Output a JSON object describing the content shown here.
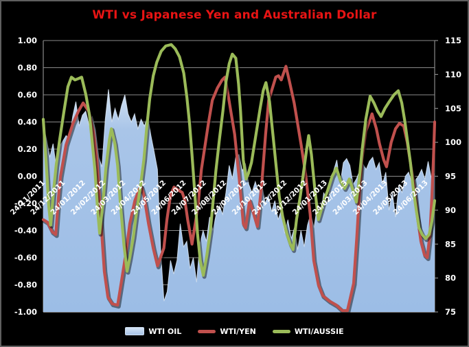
{
  "title": "WTI vs Japanese Yen and Australian Dollar",
  "colors": {
    "title": "#e81414",
    "background": "#000000",
    "grid": "#8a8a8a",
    "axis_text": "#ffffff"
  },
  "chart_data": {
    "type": "area+line combo (rolling correlation vs price)",
    "title": "WTI vs Japanese Yen and Australian Dollar",
    "grid": "horizontal gridlines on, black plot background",
    "legend_position": "bottom center",
    "y_left": {
      "min": -1.0,
      "max": 1.0,
      "step": 0.2,
      "ticks": [
        "1.00",
        "0.80",
        "0.60",
        "0.40",
        "0.20",
        "0.00",
        "-0.20",
        "-0.40",
        "-0.60",
        "-0.80",
        "-1.00"
      ]
    },
    "y_right": {
      "min": 75,
      "max": 115,
      "step": 5,
      "ticks": [
        "115",
        "110",
        "105",
        "100",
        "95",
        "90",
        "85",
        "80",
        "75"
      ]
    },
    "x_labels": [
      "24/11/2011",
      "24/12/2011",
      "24/01/2012",
      "24/02/2012",
      "24/03/2012",
      "24/04/2012",
      "24/05/2012",
      "24/06/2012",
      "24/07/2012",
      "24/08/2012",
      "24/09/2012",
      "24/10/2012",
      "24/11/2012",
      "24/12/2012",
      "24/01/2013",
      "24/02/2013",
      "24/03/2013",
      "24/04/2013",
      "24/05/2013",
      "24/06/2013"
    ],
    "series": [
      {
        "name": "WTI OIL",
        "type": "area",
        "color": "#a9c5e8",
        "color_light": "#d3e2f4",
        "axis": "left",
        "values": [
          0.38,
          0.27,
          0.14,
          0.24,
          0.06,
          0.22,
          0.26,
          0.3,
          0.27,
          0.44,
          0.55,
          0.37,
          0.45,
          0.48,
          0.38,
          0.44,
          0.34,
          0.14,
          0.07,
          0.42,
          0.64,
          0.4,
          0.5,
          0.42,
          0.52,
          0.6,
          0.46,
          0.4,
          0.46,
          0.35,
          0.42,
          0.37,
          0.44,
          0.3,
          0.18,
          0.05,
          -0.55,
          -0.92,
          -0.85,
          -0.62,
          -0.72,
          -0.62,
          -0.35,
          -0.52,
          -0.48,
          -0.68,
          -0.6,
          -0.78,
          -0.5,
          -0.4,
          -0.48,
          -0.3,
          -0.4,
          -0.28,
          -0.22,
          -0.28,
          -0.12,
          0.08,
          -0.02,
          0.14,
          0.16,
          0.04,
          0.09,
          -0.06,
          -0.12,
          -0.04,
          -0.12,
          -0.06,
          -0.2,
          -0.14,
          -0.26,
          -0.18,
          -0.32,
          -0.25,
          -0.42,
          -0.32,
          -0.46,
          -0.38,
          -0.54,
          -0.4,
          -0.52,
          -0.36,
          -0.28,
          -0.38,
          -0.22,
          -0.3,
          -0.12,
          -0.2,
          -0.08,
          0.04,
          0.12,
          -0.06,
          0.1,
          0.13,
          0.08,
          -0.06,
          -0.02,
          0.04,
          0.09,
          0.05,
          0.11,
          0.14,
          0.05,
          0.1,
          -0.06,
          0.03,
          -0.25,
          -0.12,
          -0.3,
          -0.07,
          -0.12,
          0.0,
          0.03,
          -0.05,
          -0.03,
          0.0,
          0.05,
          -0.02,
          0.11,
          -0.02,
          0.02
        ]
      },
      {
        "name": "WTI/YEN",
        "type": "line",
        "color": "#c0504d",
        "axis": "left",
        "points": [
          [
            0.0,
            -0.32
          ],
          [
            0.011,
            -0.34
          ],
          [
            0.023,
            -0.41
          ],
          [
            0.032,
            -0.43
          ],
          [
            0.039,
            -0.15
          ],
          [
            0.044,
            0.0
          ],
          [
            0.058,
            0.23
          ],
          [
            0.076,
            0.39
          ],
          [
            0.09,
            0.48
          ],
          [
            0.102,
            0.54
          ],
          [
            0.116,
            0.48
          ],
          [
            0.128,
            0.33
          ],
          [
            0.137,
            0.12
          ],
          [
            0.142,
            -0.1
          ],
          [
            0.149,
            -0.4
          ],
          [
            0.156,
            -0.7
          ],
          [
            0.165,
            -0.89
          ],
          [
            0.176,
            -0.94
          ],
          [
            0.19,
            -0.95
          ],
          [
            0.199,
            -0.79
          ],
          [
            0.211,
            -0.57
          ],
          [
            0.221,
            -0.35
          ],
          [
            0.234,
            -0.18
          ],
          [
            0.246,
            -0.09
          ],
          [
            0.251,
            -0.08
          ],
          [
            0.257,
            -0.14
          ],
          [
            0.269,
            -0.35
          ],
          [
            0.281,
            -0.53
          ],
          [
            0.292,
            -0.66
          ],
          [
            0.308,
            -0.53
          ],
          [
            0.316,
            -0.32
          ],
          [
            0.325,
            -0.14
          ],
          [
            0.334,
            -0.08
          ],
          [
            0.344,
            -0.1
          ],
          [
            0.355,
            -0.12
          ],
          [
            0.362,
            -0.18
          ],
          [
            0.369,
            -0.32
          ],
          [
            0.38,
            -0.5
          ],
          [
            0.395,
            -0.23
          ],
          [
            0.404,
            0.05
          ],
          [
            0.413,
            0.22
          ],
          [
            0.422,
            0.39
          ],
          [
            0.432,
            0.56
          ],
          [
            0.445,
            0.65
          ],
          [
            0.457,
            0.71
          ],
          [
            0.464,
            0.73
          ],
          [
            0.471,
            0.62
          ],
          [
            0.489,
            0.31
          ],
          [
            0.501,
            -0.03
          ],
          [
            0.511,
            -0.35
          ],
          [
            0.517,
            -0.38
          ],
          [
            0.527,
            -0.18
          ],
          [
            0.536,
            -0.26
          ],
          [
            0.547,
            -0.37
          ],
          [
            0.559,
            -0.03
          ],
          [
            0.568,
            0.31
          ],
          [
            0.576,
            0.56
          ],
          [
            0.594,
            0.73
          ],
          [
            0.601,
            0.74
          ],
          [
            0.608,
            0.71
          ],
          [
            0.62,
            0.81
          ],
          [
            0.629,
            0.7
          ],
          [
            0.641,
            0.54
          ],
          [
            0.659,
            0.23
          ],
          [
            0.67,
            0.02
          ],
          [
            0.682,
            -0.28
          ],
          [
            0.691,
            -0.62
          ],
          [
            0.703,
            -0.8
          ],
          [
            0.714,
            -0.88
          ],
          [
            0.731,
            -0.92
          ],
          [
            0.749,
            -0.95
          ],
          [
            0.764,
            -0.99
          ],
          [
            0.777,
            -0.99
          ],
          [
            0.793,
            -0.79
          ],
          [
            0.801,
            -0.45
          ],
          [
            0.808,
            -0.11
          ],
          [
            0.814,
            0.12
          ],
          [
            0.824,
            0.33
          ],
          [
            0.84,
            0.46
          ],
          [
            0.851,
            0.35
          ],
          [
            0.859,
            0.24
          ],
          [
            0.87,
            0.12
          ],
          [
            0.877,
            0.07
          ],
          [
            0.889,
            0.25
          ],
          [
            0.9,
            0.35
          ],
          [
            0.91,
            0.39
          ],
          [
            0.921,
            0.37
          ],
          [
            0.93,
            0.25
          ],
          [
            0.938,
            0.1
          ],
          [
            0.947,
            -0.06
          ],
          [
            0.956,
            -0.3
          ],
          [
            0.965,
            -0.48
          ],
          [
            0.974,
            -0.58
          ],
          [
            0.981,
            -0.6
          ],
          [
            0.988,
            -0.42
          ],
          [
            0.993,
            -0.14
          ],
          [
            0.997,
            0.14
          ],
          [
            1.0,
            0.4
          ]
        ]
      },
      {
        "name": "WTI/AUSSIE",
        "type": "line",
        "color": "#9bbb59",
        "axis": "left",
        "points": [
          [
            0.0,
            0.42
          ],
          [
            0.007,
            0.12
          ],
          [
            0.014,
            -0.22
          ],
          [
            0.019,
            -0.36
          ],
          [
            0.026,
            -0.12
          ],
          [
            0.033,
            0.08
          ],
          [
            0.042,
            0.27
          ],
          [
            0.053,
            0.48
          ],
          [
            0.063,
            0.66
          ],
          [
            0.072,
            0.73
          ],
          [
            0.081,
            0.71
          ],
          [
            0.09,
            0.72
          ],
          [
            0.098,
            0.73
          ],
          [
            0.109,
            0.6
          ],
          [
            0.118,
            0.45
          ],
          [
            0.125,
            0.25
          ],
          [
            0.132,
            0.05
          ],
          [
            0.139,
            -0.25
          ],
          [
            0.144,
            -0.42
          ],
          [
            0.153,
            -0.18
          ],
          [
            0.16,
            0.06
          ],
          [
            0.169,
            0.27
          ],
          [
            0.174,
            0.35
          ],
          [
            0.183,
            0.24
          ],
          [
            0.19,
            0.08
          ],
          [
            0.197,
            -0.2
          ],
          [
            0.206,
            -0.5
          ],
          [
            0.214,
            -0.7
          ],
          [
            0.221,
            -0.6
          ],
          [
            0.23,
            -0.45
          ],
          [
            0.239,
            -0.25
          ],
          [
            0.248,
            -0.08
          ],
          [
            0.257,
            0.12
          ],
          [
            0.264,
            0.35
          ],
          [
            0.272,
            0.57
          ],
          [
            0.281,
            0.74
          ],
          [
            0.29,
            0.84
          ],
          [
            0.301,
            0.92
          ],
          [
            0.313,
            0.96
          ],
          [
            0.327,
            0.97
          ],
          [
            0.337,
            0.94
          ],
          [
            0.348,
            0.88
          ],
          [
            0.359,
            0.76
          ],
          [
            0.367,
            0.58
          ],
          [
            0.374,
            0.38
          ],
          [
            0.38,
            0.16
          ],
          [
            0.387,
            -0.12
          ],
          [
            0.394,
            -0.42
          ],
          [
            0.401,
            -0.62
          ],
          [
            0.409,
            -0.73
          ],
          [
            0.418,
            -0.58
          ],
          [
            0.427,
            -0.4
          ],
          [
            0.434,
            -0.18
          ],
          [
            0.441,
            0.04
          ],
          [
            0.45,
            0.27
          ],
          [
            0.459,
            0.48
          ],
          [
            0.467,
            0.7
          ],
          [
            0.475,
            0.83
          ],
          [
            0.483,
            0.9
          ],
          [
            0.492,
            0.87
          ],
          [
            0.499,
            0.68
          ],
          [
            0.504,
            0.48
          ],
          [
            0.511,
            0.12
          ],
          [
            0.518,
            -0.02
          ],
          [
            0.524,
            0.02
          ],
          [
            0.532,
            0.1
          ],
          [
            0.543,
            0.3
          ],
          [
            0.554,
            0.5
          ],
          [
            0.562,
            0.63
          ],
          [
            0.569,
            0.69
          ],
          [
            0.578,
            0.55
          ],
          [
            0.587,
            0.3
          ],
          [
            0.594,
            0.1
          ],
          [
            0.603,
            -0.15
          ],
          [
            0.612,
            -0.3
          ],
          [
            0.622,
            -0.42
          ],
          [
            0.631,
            -0.5
          ],
          [
            0.638,
            -0.54
          ],
          [
            0.647,
            -0.32
          ],
          [
            0.657,
            -0.14
          ],
          [
            0.666,
            0.05
          ],
          [
            0.673,
            0.2
          ],
          [
            0.678,
            0.3
          ],
          [
            0.685,
            0.16
          ],
          [
            0.694,
            -0.1
          ],
          [
            0.703,
            -0.32
          ],
          [
            0.715,
            -0.2
          ],
          [
            0.726,
            -0.11
          ],
          [
            0.738,
            0.0
          ],
          [
            0.749,
            0.06
          ],
          [
            0.759,
            -0.03
          ],
          [
            0.77,
            -0.09
          ],
          [
            0.782,
            -0.02
          ],
          [
            0.791,
            -0.1
          ],
          [
            0.8,
            -0.19
          ],
          [
            0.808,
            0.0
          ],
          [
            0.815,
            0.2
          ],
          [
            0.824,
            0.42
          ],
          [
            0.835,
            0.59
          ],
          [
            0.845,
            0.54
          ],
          [
            0.854,
            0.48
          ],
          [
            0.863,
            0.44
          ],
          [
            0.873,
            0.5
          ],
          [
            0.884,
            0.55
          ],
          [
            0.896,
            0.6
          ],
          [
            0.907,
            0.63
          ],
          [
            0.916,
            0.54
          ],
          [
            0.924,
            0.4
          ],
          [
            0.931,
            0.25
          ],
          [
            0.938,
            0.1
          ],
          [
            0.945,
            -0.08
          ],
          [
            0.953,
            -0.25
          ],
          [
            0.96,
            -0.38
          ],
          [
            0.968,
            -0.43
          ],
          [
            0.977,
            -0.46
          ],
          [
            0.986,
            -0.43
          ],
          [
            0.993,
            -0.33
          ],
          [
            1.0,
            -0.18
          ]
        ]
      }
    ]
  }
}
